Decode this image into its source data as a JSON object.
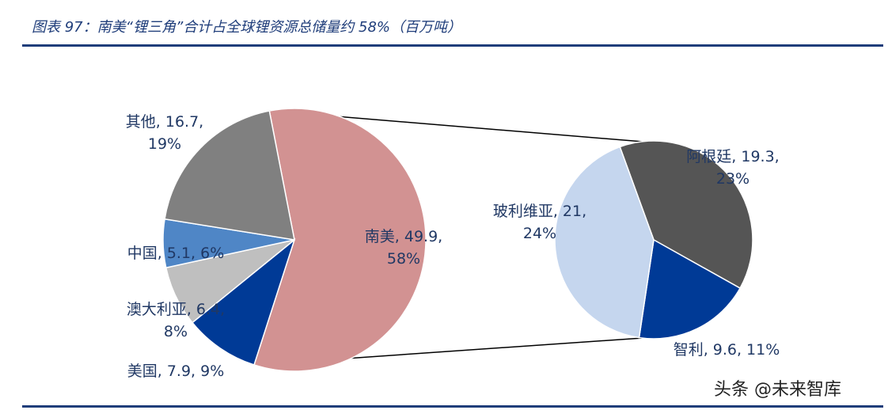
{
  "header": {
    "title": "图表 97：南美“锂三角”合计占全球锂资源总储量约 58%（百万吨）"
  },
  "watermark": "头条 @未来智库",
  "chart_data": [
    {
      "type": "pie",
      "title": "",
      "slices": [
        {
          "label": "南美",
          "value": 49.9,
          "percent": "58%",
          "label_text": "南美, 49.9,",
          "pct_text": "58%",
          "color": "#d29292"
        },
        {
          "label": "美国",
          "value": 7.9,
          "percent": "9%",
          "label_text": "美国, 7.9, 9%",
          "pct_text": "",
          "color": "#003a96"
        },
        {
          "label": "澳大利亚",
          "value": 6.4,
          "percent": "8%",
          "label_text": "澳大利亚, 6.4,",
          "pct_text": "8%",
          "color": "#bfbfbf"
        },
        {
          "label": "中国",
          "value": 5.1,
          "percent": "6%",
          "label_text": "中国, 5.1, 6%",
          "pct_text": "",
          "color": "#4f86c6"
        },
        {
          "label": "其他",
          "value": 16.7,
          "percent": "19%",
          "label_text": "其他, 16.7,",
          "pct_text": "19%",
          "color": "#808080"
        }
      ]
    },
    {
      "type": "pie",
      "title": "",
      "slices": [
        {
          "label": "阿根廷",
          "value": 19.3,
          "percent": "23%",
          "label_text": "阿根廷, 19.3,",
          "pct_text": "23%",
          "color": "#555555"
        },
        {
          "label": "智利",
          "value": 9.6,
          "percent": "11%",
          "label_text": "智利, 9.6, 11%",
          "pct_text": "",
          "color": "#003a96"
        },
        {
          "label": "玻利维亚",
          "value": 21,
          "percent": "24%",
          "label_text": "玻利维亚, 21,",
          "pct_text": "24%",
          "color": "#c5d6ee"
        }
      ]
    }
  ]
}
